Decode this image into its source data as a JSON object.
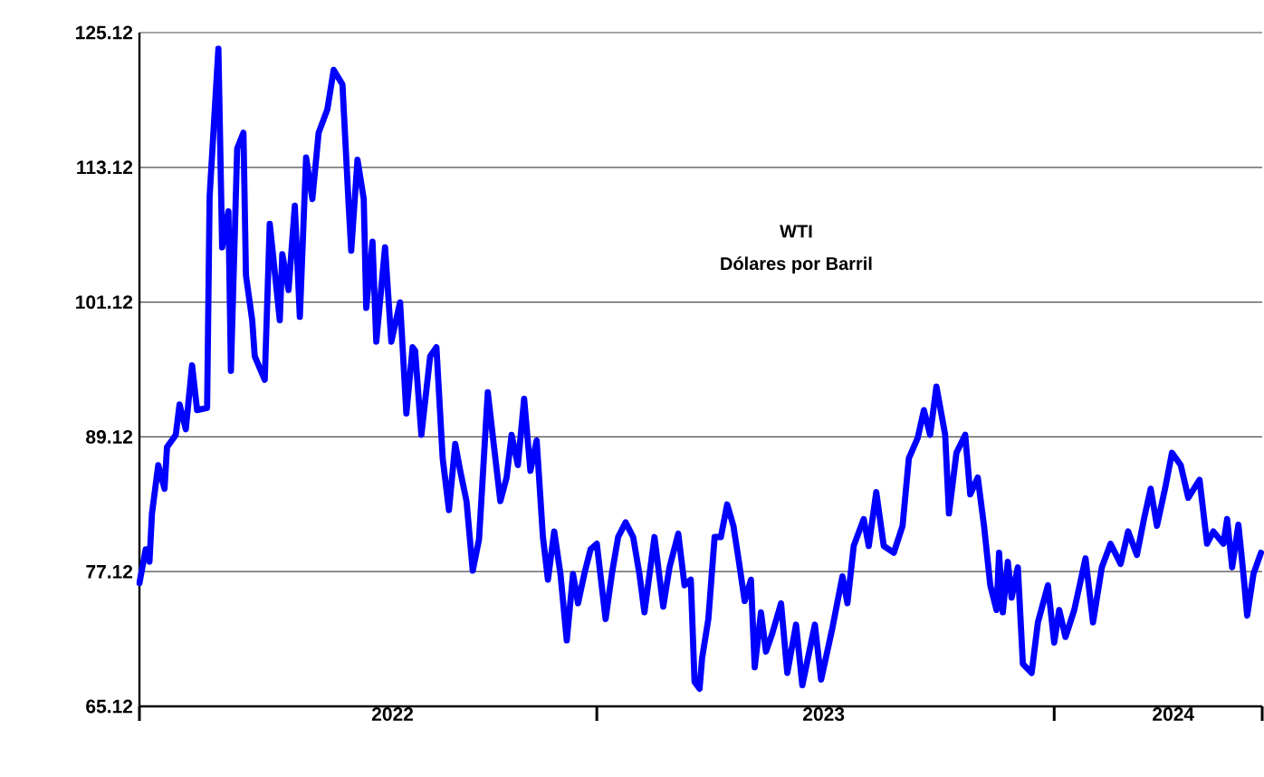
{
  "chart_data": {
    "type": "line",
    "title": "WTI",
    "subtitle": "Dólares por Barril",
    "x": [
      "2022-01-01",
      "2022-01-06",
      "2022-01-09",
      "2022-01-11",
      "2022-01-16",
      "2022-01-21",
      "2022-01-23",
      "2022-01-30",
      "2022-02-02",
      "2022-02-07",
      "2022-02-12",
      "2022-02-16",
      "2022-02-24",
      "2022-02-26",
      "2022-03-05",
      "2022-03-08",
      "2022-03-13",
      "2022-03-15",
      "2022-03-20",
      "2022-03-25",
      "2022-03-27",
      "2022-04-01",
      "2022-04-03",
      "2022-04-11",
      "2022-04-15",
      "2022-04-23",
      "2022-04-25",
      "2022-04-30",
      "2022-05-05",
      "2022-05-09",
      "2022-05-14",
      "2022-05-19",
      "2022-05-24",
      "2022-05-31",
      "2022-06-05",
      "2022-06-12",
      "2022-06-17",
      "2022-06-19",
      "2022-06-24",
      "2022-06-29",
      "2022-07-01",
      "2022-07-06",
      "2022-07-09",
      "2022-07-16",
      "2022-07-21",
      "2022-07-28",
      "2022-08-02",
      "2022-08-07",
      "2022-08-09",
      "2022-08-14",
      "2022-08-21",
      "2022-08-26",
      "2022-08-31",
      "2022-09-05",
      "2022-09-10",
      "2022-09-14",
      "2022-09-19",
      "2022-09-24",
      "2022-09-29",
      "2022-10-06",
      "2022-10-11",
      "2022-10-16",
      "2022-10-21",
      "2022-10-25",
      "2022-10-30",
      "2022-11-04",
      "2022-11-09",
      "2022-11-14",
      "2022-11-19",
      "2022-11-23",
      "2022-11-28",
      "2022-12-03",
      "2022-12-08",
      "2022-12-13",
      "2022-12-17",
      "2022-12-22",
      "2022-12-27",
      "2023-01-01",
      "2023-01-08",
      "2023-01-13",
      "2023-01-18",
      "2023-01-24",
      "2023-01-30",
      "2023-02-04",
      "2023-02-08",
      "2023-02-16",
      "2023-02-23",
      "2023-02-28",
      "2023-03-07",
      "2023-03-12",
      "2023-03-17",
      "2023-03-20",
      "2023-03-24",
      "2023-03-26",
      "2023-03-31",
      "2023-04-05",
      "2023-04-10",
      "2023-04-15",
      "2023-04-20",
      "2023-04-24",
      "2023-04-29",
      "2023-05-04",
      "2023-05-07",
      "2023-05-12",
      "2023-05-16",
      "2023-05-21",
      "2023-05-28",
      "2023-06-02",
      "2023-06-09",
      "2023-06-14",
      "2023-06-24",
      "2023-06-29",
      "2023-07-08",
      "2023-07-16",
      "2023-07-20",
      "2023-07-25",
      "2023-08-02",
      "2023-08-06",
      "2023-08-12",
      "2023-08-18",
      "2023-08-26",
      "2023-09-02",
      "2023-09-07",
      "2023-09-14",
      "2023-09-19",
      "2023-09-24",
      "2023-09-29",
      "2023-10-06",
      "2023-10-09",
      "2023-10-15",
      "2023-10-22",
      "2023-10-26",
      "2023-11-01",
      "2023-11-06",
      "2023-11-11",
      "2023-11-16",
      "2023-11-18",
      "2023-11-21",
      "2023-11-25",
      "2023-11-28",
      "2023-12-03",
      "2023-12-07",
      "2023-12-14",
      "2023-12-19",
      "2023-12-27",
      "2024-01-01",
      "2024-01-05",
      "2024-01-10",
      "2024-01-17",
      "2024-01-26",
      "2024-02-01",
      "2024-02-08",
      "2024-02-15",
      "2024-02-23",
      "2024-02-29",
      "2024-03-07",
      "2024-03-13",
      "2024-03-18",
      "2024-03-23",
      "2024-03-30",
      "2024-04-04",
      "2024-04-11",
      "2024-04-17",
      "2024-04-26",
      "2024-05-02",
      "2024-05-07",
      "2024-05-15",
      "2024-05-18",
      "2024-05-22",
      "2024-05-27",
      "2024-05-31",
      "2024-06-03",
      "2024-06-08",
      "2024-06-14"
    ],
    "series": [
      {
        "color": "#0000ff",
        "values": [
          76.1,
          79.1,
          78.0,
          82.3,
          86.6,
          84.5,
          88.2,
          89.3,
          92.0,
          89.8,
          95.5,
          91.5,
          91.7,
          110.5,
          123.7,
          106.0,
          109.2,
          95.0,
          114.8,
          116.2,
          103.5,
          99.5,
          96.3,
          94.2,
          108.1,
          99.5,
          105.4,
          102.2,
          109.7,
          99.8,
          114.0,
          110.3,
          116.2,
          118.3,
          121.8,
          120.5,
          109.7,
          105.7,
          113.8,
          110.3,
          100.6,
          106.5,
          97.6,
          106.0,
          97.6,
          101.1,
          91.2,
          97.1,
          96.8,
          89.3,
          96.3,
          97.1,
          87.2,
          82.6,
          88.5,
          86.1,
          83.4,
          77.2,
          80.0,
          93.1,
          88.2,
          83.4,
          85.5,
          89.3,
          86.6,
          92.5,
          86.1,
          88.8,
          80.2,
          76.4,
          80.7,
          76.9,
          71.0,
          76.9,
          74.3,
          76.9,
          79.1,
          79.6,
          72.9,
          76.9,
          80.2,
          81.5,
          80.2,
          76.9,
          73.5,
          80.2,
          74.0,
          77.5,
          80.5,
          75.9,
          76.4,
          67.3,
          66.7,
          69.4,
          72.9,
          80.2,
          80.2,
          83.1,
          81.2,
          78.3,
          74.5,
          76.4,
          68.6,
          73.5,
          70.0,
          71.6,
          74.3,
          68.1,
          72.4,
          67.0,
          72.4,
          67.5,
          72.1,
          76.7,
          74.3,
          79.4,
          81.8,
          79.4,
          84.2,
          79.4,
          78.8,
          81.2,
          87.2,
          89.0,
          91.5,
          89.3,
          93.6,
          89.3,
          82.3,
          87.7,
          89.3,
          84.0,
          85.5,
          81.2,
          75.9,
          73.7,
          78.8,
          73.5,
          78.0,
          74.8,
          77.5,
          68.9,
          68.1,
          72.6,
          75.9,
          70.8,
          73.7,
          71.3,
          73.7,
          78.3,
          72.6,
          77.5,
          79.6,
          77.8,
          80.7,
          78.6,
          82.0,
          84.5,
          81.2,
          84.8,
          87.7,
          86.6,
          83.7,
          85.3,
          79.6,
          80.7,
          79.6,
          81.8,
          77.5,
          81.3,
          76.9,
          73.2,
          76.9,
          78.8
        ]
      }
    ],
    "xlim": [
      "2022-01-01",
      "2024-06-15"
    ],
    "xticks": [
      {
        "value": "2022-01-01",
        "label": null
      },
      {
        "value": "2022-07-22",
        "label": "2022"
      },
      {
        "value": "2023-01-01",
        "label": null
      },
      {
        "value": "2023-07-01",
        "label": "2023"
      },
      {
        "value": "2024-01-01",
        "label": null
      },
      {
        "value": "2024-04-05",
        "label": "2024"
      },
      {
        "value": "2024-06-15",
        "label": null
      }
    ],
    "ylim": [
      65.12,
      125.12
    ],
    "yticks": [
      65.12,
      77.12,
      89.12,
      101.12,
      113.12,
      125.12
    ],
    "grid": "y"
  }
}
